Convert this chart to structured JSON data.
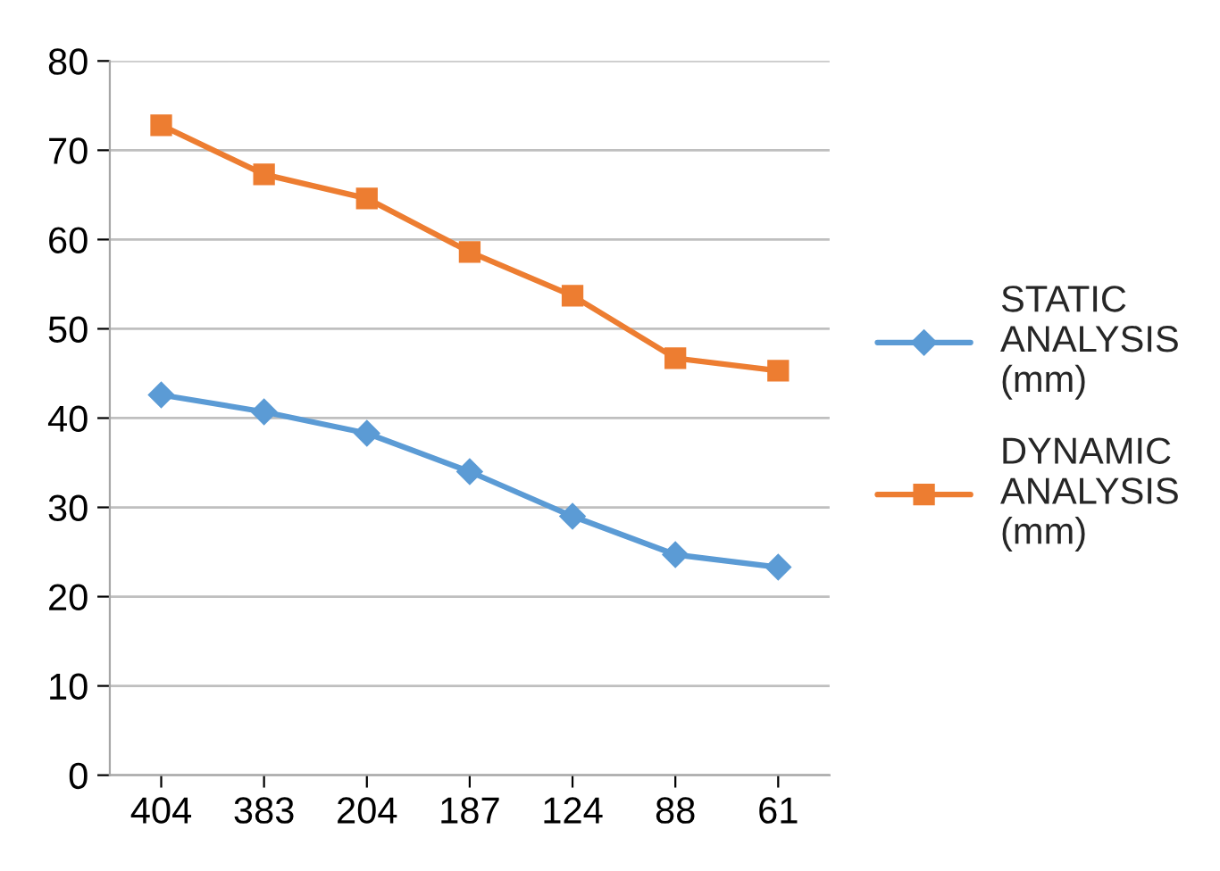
{
  "chart_data": {
    "type": "line",
    "categories": [
      "404",
      "383",
      "204",
      "187",
      "124",
      "88",
      "61"
    ],
    "series": [
      {
        "name": "STATIC ANALYSIS (mm)",
        "color": "#5b9bd5",
        "marker": "diamond",
        "values": [
          42.6,
          40.7,
          38.3,
          34.0,
          29.0,
          24.7,
          23.3
        ]
      },
      {
        "name": "DYNAMIC ANALYSIS (mm)",
        "color": "#ed7d31",
        "marker": "square",
        "values": [
          72.8,
          67.3,
          64.6,
          58.6,
          53.7,
          46.7,
          45.3
        ]
      }
    ],
    "ylim": [
      0,
      80
    ],
    "yticks": [
      0,
      10,
      20,
      30,
      40,
      50,
      60,
      70,
      80
    ],
    "grid": "y",
    "legend": "right",
    "line_style": "solid"
  }
}
